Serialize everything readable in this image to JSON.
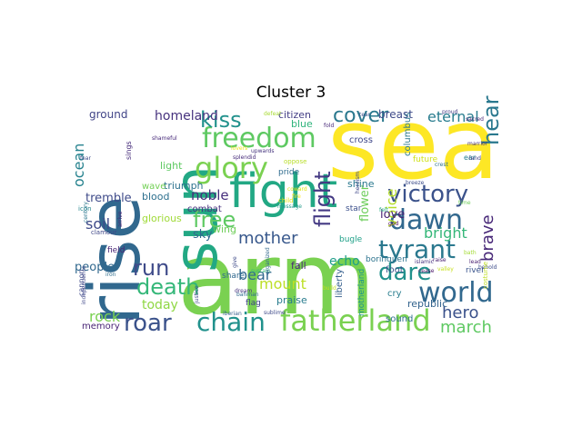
{
  "title": "Cluster 3",
  "words": [
    {
      "text": "sea",
      "color": "#fde725"
    },
    {
      "text": "arm",
      "color": "#7ad151"
    },
    {
      "text": "rise",
      "color": "#31688e"
    },
    {
      "text": "sun",
      "color": "#22a884"
    },
    {
      "text": "fight",
      "color": "#22a884"
    },
    {
      "text": "fatherland",
      "color": "#7ad151"
    },
    {
      "text": "freedom",
      "color": "#5ec962"
    },
    {
      "text": "glory",
      "color": "#7ad151"
    },
    {
      "text": "victory",
      "color": "#3b528b"
    },
    {
      "text": "world",
      "color": "#31688e"
    },
    {
      "text": "tyrant",
      "color": "#2a788e"
    },
    {
      "text": "dawn",
      "color": "#31688e"
    },
    {
      "text": "chain",
      "color": "#21918c"
    },
    {
      "text": "roar",
      "color": "#3b528b"
    },
    {
      "text": "death",
      "color": "#35b779"
    },
    {
      "text": "run",
      "color": "#3e4a89"
    },
    {
      "text": "kiss",
      "color": "#21918c"
    },
    {
      "text": "cover",
      "color": "#2a788e"
    },
    {
      "text": "dare",
      "color": "#21918c"
    },
    {
      "text": "flight",
      "color": "#443983"
    },
    {
      "text": "hear",
      "color": "#2a788e"
    },
    {
      "text": "free",
      "color": "#5ec962"
    },
    {
      "text": "brave",
      "color": "#482878"
    },
    {
      "text": "hero",
      "color": "#3b528b"
    },
    {
      "text": "march",
      "color": "#5ec962"
    },
    {
      "text": "rock",
      "color": "#7ad151"
    },
    {
      "text": "ocean",
      "color": "#26828e"
    },
    {
      "text": "eternal",
      "color": "#287c8e"
    },
    {
      "text": "mother",
      "color": "#38588c"
    },
    {
      "text": "voice",
      "color": "#b5de2b"
    },
    {
      "text": "bright",
      "color": "#35b779"
    },
    {
      "text": "soil",
      "color": "#3e4a89"
    },
    {
      "text": "noble",
      "color": "#472f7d"
    },
    {
      "text": "today",
      "color": "#8fd744"
    },
    {
      "text": "bear",
      "color": "#31688e"
    },
    {
      "text": "love",
      "color": "#482173"
    },
    {
      "text": "mount",
      "color": "#bddf26"
    },
    {
      "text": "echo",
      "color": "#1f9e89"
    },
    {
      "text": "homeland",
      "color": "#46327e"
    },
    {
      "text": "flower",
      "color": "#6ccd5a"
    },
    {
      "text": "people",
      "color": "#31688e"
    },
    {
      "text": "breast",
      "color": "#3e4a89"
    },
    {
      "text": "sky",
      "color": "#31688e"
    },
    {
      "text": "ground",
      "color": "#414487"
    },
    {
      "text": "tremble",
      "color": "#3e4a89"
    },
    {
      "text": "glorious",
      "color": "#a0da39"
    },
    {
      "text": "triumph",
      "color": "#2c728e"
    },
    {
      "text": "light",
      "color": "#5ec962"
    },
    {
      "text": "shine",
      "color": "#2a788e"
    },
    {
      "text": "citizen",
      "color": "#433e85"
    },
    {
      "text": "blue",
      "color": "#2fb47c"
    },
    {
      "text": "praise",
      "color": "#287c8e"
    },
    {
      "text": "fall",
      "color": "#482677"
    },
    {
      "text": "republic",
      "color": "#33638d"
    },
    {
      "text": "cry",
      "color": "#287d8e"
    },
    {
      "text": "sound",
      "color": "#2e6f8e"
    },
    {
      "text": "foot",
      "color": "#3b528b"
    },
    {
      "text": "memory",
      "color": "#482475"
    },
    {
      "text": "blood",
      "color": "#2d708e"
    },
    {
      "text": "wave",
      "color": "#73d056"
    },
    {
      "text": "combat",
      "color": "#46307e"
    },
    {
      "text": "wing",
      "color": "#6ece58"
    },
    {
      "text": "cross",
      "color": "#3f4889"
    },
    {
      "text": "columbus",
      "color": "#2a788e"
    },
    {
      "text": "future",
      "color": "#d0e11c"
    },
    {
      "text": "star",
      "color": "#3c508b"
    },
    {
      "text": "bugle",
      "color": "#1fa088"
    },
    {
      "text": "pride",
      "color": "#2f6c8e"
    },
    {
      "text": "liberty",
      "color": "#355f8d"
    },
    {
      "text": "motherland",
      "color": "#1f968b"
    },
    {
      "text": "share",
      "color": "#31688e"
    },
    {
      "text": "flag",
      "color": "#404588"
    },
    {
      "text": "field",
      "color": "#482576"
    },
    {
      "text": "cannon",
      "color": "#3e4989"
    },
    {
      "text": "river",
      "color": "#3a548c"
    },
    {
      "text": "borinquen",
      "color": "#2c738e"
    },
    {
      "text": "sings",
      "color": "#472d7b"
    },
    {
      "text": "icon",
      "color": "#24868e"
    },
    {
      "text": "clamour",
      "color": "#3f4788"
    },
    {
      "text": "ear",
      "color": "#277f8e"
    },
    {
      "text": "land",
      "color": "#424086"
    },
    {
      "text": "marrior",
      "color": "#46327e"
    },
    {
      "text": "sacred",
      "color": "#482878"
    },
    {
      "text": "proud",
      "color": "#443b84"
    },
    {
      "text": "lead",
      "color": "#481f70"
    },
    {
      "text": "raise",
      "color": "#482071"
    },
    {
      "text": "breeze",
      "color": "#3d4d8a"
    },
    {
      "text": "crest",
      "color": "#2d718e"
    },
    {
      "text": "time",
      "color": "#6ece58"
    },
    {
      "text": "valley",
      "color": "#c8e020"
    },
    {
      "text": "bath",
      "color": "#a5db36"
    },
    {
      "text": "behold",
      "color": "#3e4c8a"
    },
    {
      "text": "costume",
      "color": "#c0df25"
    },
    {
      "text": "cease",
      "color": "#471365"
    },
    {
      "text": "islamic",
      "color": "#46337f"
    },
    {
      "text": "heroism",
      "color": "#3f4788"
    },
    {
      "text": "felt",
      "color": "#27ad81"
    },
    {
      "text": "god",
      "color": "#440154"
    },
    {
      "text": "fire",
      "color": "#fde725"
    },
    {
      "text": "defeat",
      "color": "#a8db34"
    },
    {
      "text": "tear",
      "color": "#3b528b"
    },
    {
      "text": "fear",
      "color": "#3e4a89"
    },
    {
      "text": "century",
      "color": "#2a768e"
    },
    {
      "text": "independence",
      "color": "#3f4788"
    },
    {
      "text": "arrive",
      "color": "#482374"
    },
    {
      "text": "iron",
      "color": "#2e6e8e"
    },
    {
      "text": "shameful",
      "color": "#472a7a"
    },
    {
      "text": "upwards",
      "color": "#45337d"
    },
    {
      "text": "splendid",
      "color": "#472c7a"
    },
    {
      "text": "oppose",
      "color": "#b8de29"
    },
    {
      "text": "lovers",
      "color": "#ebe51a"
    },
    {
      "text": "sustain",
      "color": "#35b779"
    },
    {
      "text": "message",
      "color": "#1f9a8a"
    },
    {
      "text": "give",
      "color": "#3e4a89"
    },
    {
      "text": "child",
      "color": "#e5e419"
    },
    {
      "text": "coward",
      "color": "#dde318"
    },
    {
      "text": "bahman",
      "color": "#306a8e"
    },
    {
      "text": "iberian",
      "color": "#355e8d"
    },
    {
      "text": "sublime",
      "color": "#3e4989"
    },
    {
      "text": "justice",
      "color": "#3f4889"
    },
    {
      "text": "dream",
      "color": "#46327e"
    },
    {
      "text": "organized",
      "color": "#31688e"
    },
    {
      "text": "build",
      "color": "#c2df23"
    },
    {
      "text": "fold",
      "color": "#482979"
    }
  ]
}
